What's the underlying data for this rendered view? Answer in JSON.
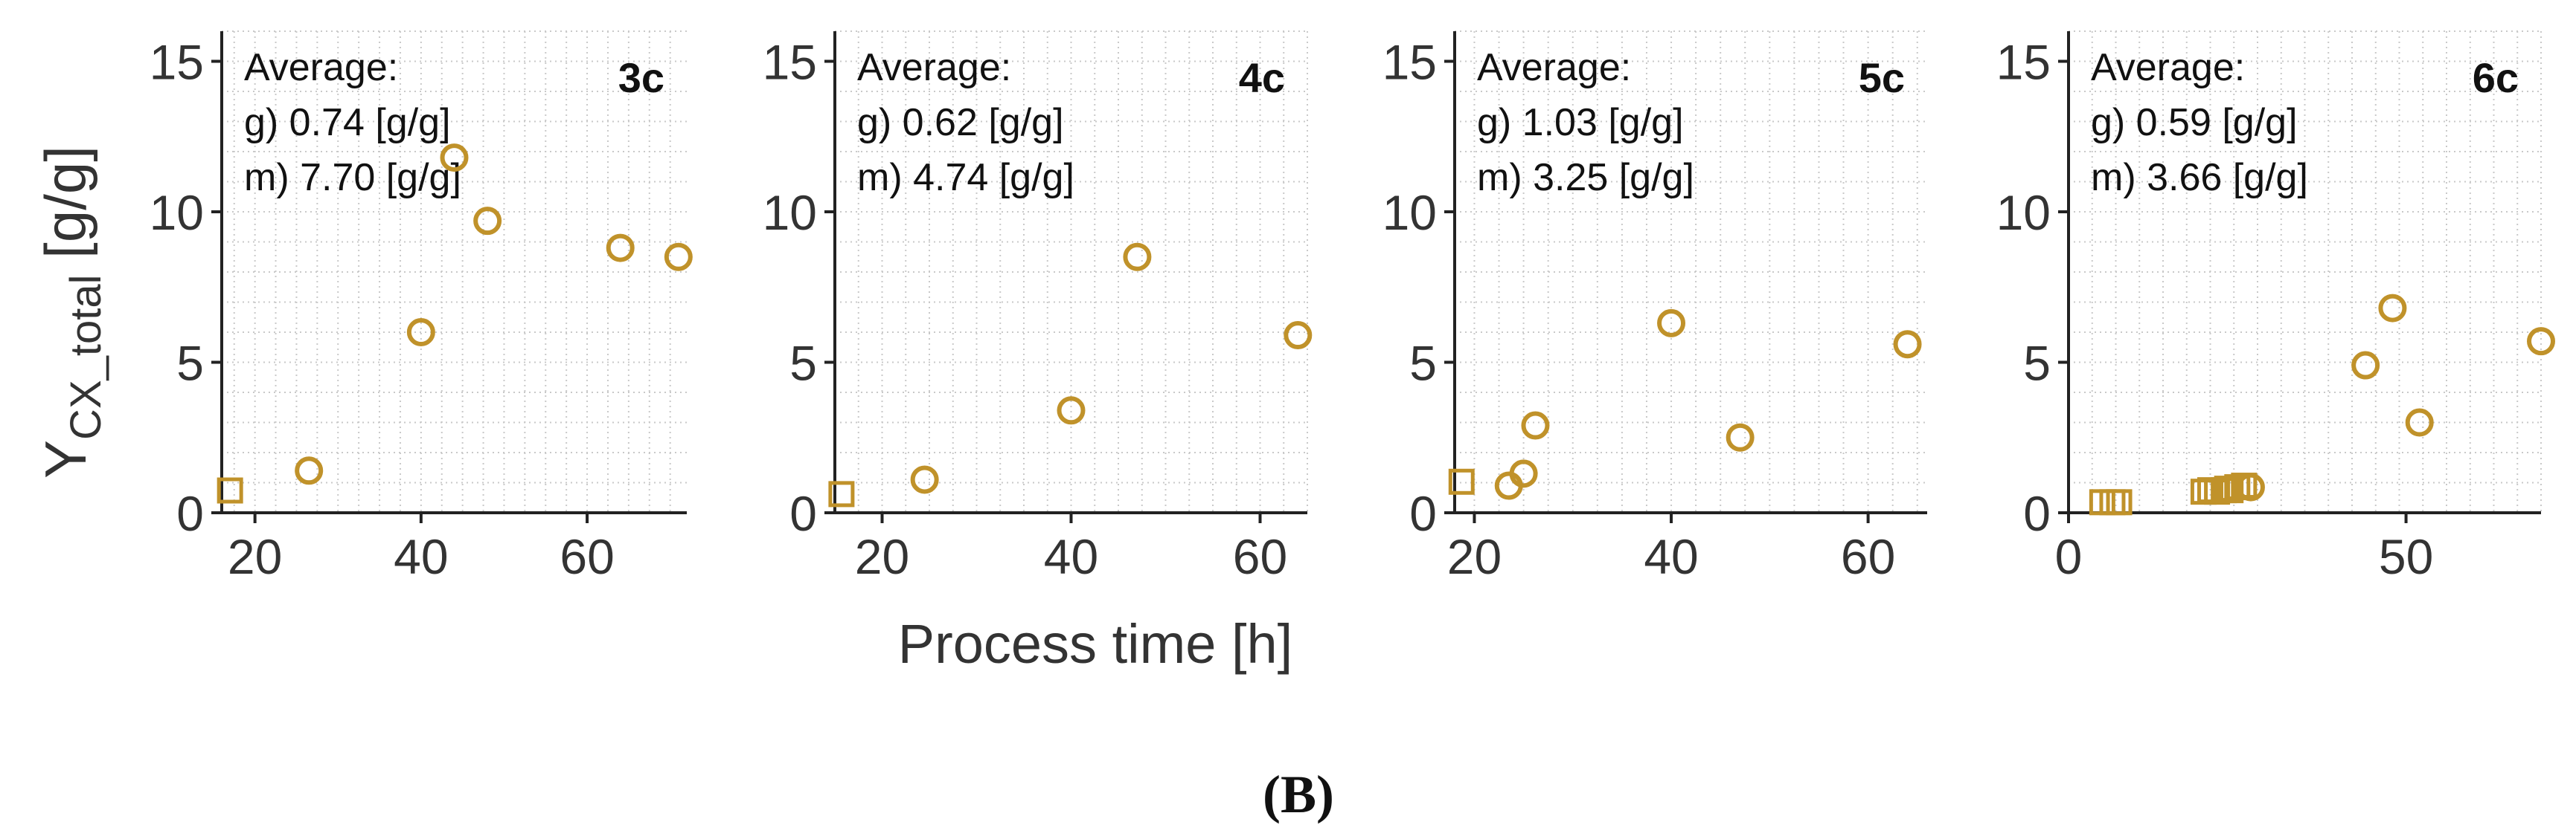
{
  "figure": {
    "ylabel_main": "Y",
    "ylabel_sub": "CX_total",
    "ylabel_unit": " [g/g]",
    "xlabel": "Process time [h]",
    "caption": "(B)",
    "marker_color": "#C0922A"
  },
  "chart_data": [
    {
      "type": "scatter",
      "panel": "3c",
      "annotation": [
        "Average:",
        "g) 0.74 [g/g]",
        "m) 7.70 [g/g]"
      ],
      "xlim": [
        16,
        72
      ],
      "ylim": [
        0,
        16
      ],
      "xticks": [
        20,
        40,
        60
      ],
      "yticks": [
        0,
        5,
        10,
        15
      ],
      "series": [
        {
          "name": "g",
          "marker": "square",
          "x": [
            17
          ],
          "y": [
            0.74
          ]
        },
        {
          "name": "m",
          "marker": "circle",
          "x": [
            26.5,
            40,
            44,
            48,
            64,
            71
          ],
          "y": [
            1.4,
            6.0,
            11.8,
            9.7,
            8.8,
            8.5
          ]
        }
      ]
    },
    {
      "type": "scatter",
      "panel": "4c",
      "annotation": [
        "Average:",
        "g) 0.62 [g/g]",
        "m) 4.74 [g/g]"
      ],
      "xlim": [
        15,
        65
      ],
      "ylim": [
        0,
        16
      ],
      "xticks": [
        20,
        40,
        60
      ],
      "yticks": [
        0,
        5,
        10,
        15
      ],
      "series": [
        {
          "name": "g",
          "marker": "square",
          "x": [
            15.7
          ],
          "y": [
            0.62
          ]
        },
        {
          "name": "m",
          "marker": "circle",
          "x": [
            24.5,
            40,
            47,
            64
          ],
          "y": [
            1.1,
            3.4,
            8.5,
            5.9
          ]
        }
      ]
    },
    {
      "type": "scatter",
      "panel": "5c",
      "annotation": [
        "Average:",
        "g) 1.03 [g/g]",
        "m) 3.25 [g/g]"
      ],
      "xlim": [
        18,
        66
      ],
      "ylim": [
        0,
        16
      ],
      "xticks": [
        20,
        40,
        60
      ],
      "yticks": [
        0,
        5,
        10,
        15
      ],
      "series": [
        {
          "name": "g",
          "marker": "square",
          "x": [
            18.7
          ],
          "y": [
            1.03
          ]
        },
        {
          "name": "m",
          "marker": "circle",
          "x": [
            23.5,
            25,
            26.2,
            40,
            47,
            64
          ],
          "y": [
            0.9,
            1.3,
            2.9,
            6.3,
            2.5,
            5.6
          ]
        }
      ]
    },
    {
      "type": "scatter",
      "panel": "6c",
      "annotation": [
        "Average:",
        "g) 0.59 [g/g]",
        "m) 3.66 [g/g]"
      ],
      "xlim": [
        0,
        70
      ],
      "ylim": [
        0,
        16
      ],
      "xticks": [
        0,
        50
      ],
      "yticks": [
        0,
        5,
        10,
        15
      ],
      "series": [
        {
          "name": "g",
          "marker": "square",
          "x": [
            5,
            6.5,
            7.5,
            20,
            21,
            22,
            23,
            23.5,
            24,
            25,
            26
          ],
          "y": [
            0.35,
            0.35,
            0.35,
            0.7,
            0.75,
            0.7,
            0.75,
            0.8,
            0.75,
            0.85,
            0.9
          ]
        },
        {
          "name": "m",
          "marker": "circle",
          "x": [
            27,
            44,
            48,
            52,
            70
          ],
          "y": [
            0.85,
            4.9,
            6.8,
            3.0,
            5.7
          ]
        }
      ]
    }
  ]
}
